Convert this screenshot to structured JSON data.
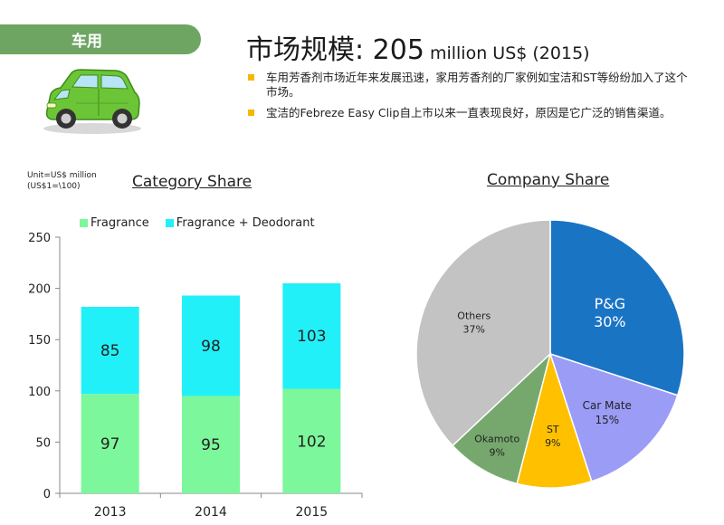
{
  "header": {
    "section_tag": "车用",
    "title_main": "市场规模: ",
    "title_value": "205",
    "title_unit": " million US$ (2015)"
  },
  "bullets": [
    "车用芳香剂市场近年来发展迅速，家用芳香剂的厂家例如宝洁和ST等纷纷加入了这个市场。",
    "宝洁的Febreze Easy Clip自上市以来一直表现良好，原因是它广泛的销售渠道。"
  ],
  "unit_note": {
    "line1": "Unit=US$ million",
    "line2": "(US$1=\\100)"
  },
  "colors": {
    "tag_green": "#6fa562",
    "bullet_yellow": "#f5b800",
    "fragrance": "#7cf79b",
    "fragrance_deodorant": "#22f0f8",
    "pg": "#1a74c4",
    "car_mate": "#9b9cf6",
    "st": "#ffc000",
    "okamoto": "#76a86e",
    "others": "#c3c3c3"
  },
  "icons": {
    "car": "green-car-icon"
  },
  "chart_data": [
    {
      "type": "bar",
      "stacked": true,
      "title": "Category Share",
      "categories": [
        "2013",
        "2014",
        "2015"
      ],
      "series": [
        {
          "name": "Fragrance",
          "values": [
            97,
            95,
            102
          ],
          "color": "#7cf79b"
        },
        {
          "name": "Fragrance + Deodorant",
          "values": [
            85,
            98,
            103
          ],
          "color": "#22f0f8"
        }
      ],
      "ylim": [
        0,
        250
      ],
      "yticks": [
        0,
        50,
        100,
        150,
        200,
        250
      ],
      "legend": "top",
      "grid": false
    },
    {
      "type": "pie",
      "title": "Company Share",
      "slices": [
        {
          "label": "P&G",
          "value": 30,
          "display": "30%",
          "color": "#1a74c4"
        },
        {
          "label": "Car Mate",
          "value": 15,
          "display": "15%",
          "color": "#9b9cf6"
        },
        {
          "label": "ST",
          "value": 9,
          "display": "9%",
          "color": "#ffc000"
        },
        {
          "label": "Okamoto",
          "value": 9,
          "display": "9%",
          "color": "#76a86e"
        },
        {
          "label": "Others",
          "value": 37,
          "display": "37%",
          "color": "#c3c3c3"
        }
      ]
    }
  ]
}
